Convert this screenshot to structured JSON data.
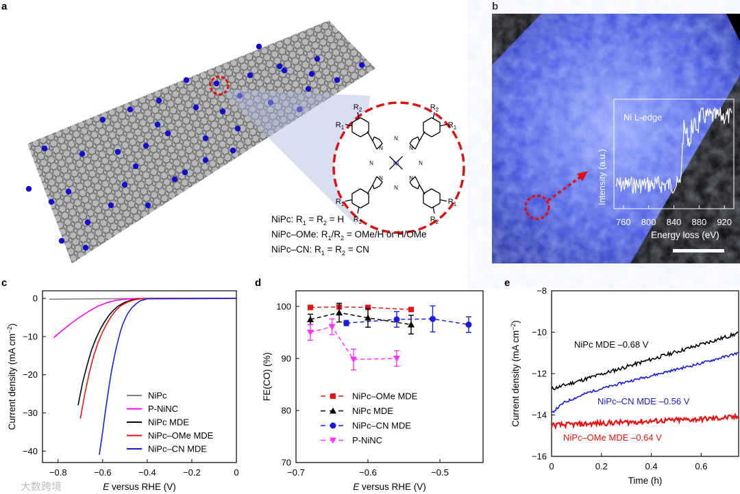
{
  "panels": {
    "a": {
      "label": "a",
      "legend_lines": [
        [
          "NiPc: R",
          "1",
          " = R",
          "2",
          " = H"
        ],
        [
          "NiPc–OMe: R",
          "1",
          "/R",
          "2",
          " = OMe/H or H/OMe"
        ],
        [
          "NiPc–CN: R",
          "1",
          " = R",
          "2",
          " = CN"
        ]
      ],
      "molecule": {
        "metal": "Ni",
        "R1": "R",
        "R2": "R",
        "sub1": "1",
        "sub2": "2",
        "N": "N"
      }
    },
    "b": {
      "label": "b",
      "inset_title": "Ni L-edge",
      "inset_ylabel": "Intensity (a.u.)",
      "inset_xlabel": "Energy loss (eV)",
      "inset_xticks": [
        "760",
        "800",
        "840",
        "880",
        "920"
      ]
    },
    "c": {
      "label": "c"
    },
    "d": {
      "label": "d"
    },
    "e": {
      "label": "e"
    }
  },
  "watermark": "大数跨境",
  "chart_data": [
    {
      "id": "c",
      "type": "line",
      "xlabel_italic": "E",
      "xlabel": " versus RHE (V)",
      "ylabel": "Current density (mA cm",
      "ylabel_sup": "−2",
      "ylabel_end": ")",
      "xlim": [
        -0.87,
        0
      ],
      "ylim": [
        -43,
        2
      ],
      "xticks": [
        -0.8,
        -0.6,
        -0.4,
        -0.2,
        0
      ],
      "xtick_labels": [
        "−0.8",
        "−0.6",
        "−0.4",
        "−0.2",
        "0"
      ],
      "yticks": [
        0,
        -10,
        -20,
        -30,
        -40
      ],
      "ytick_labels": [
        "0",
        "−10",
        "−20",
        "−30",
        "−40"
      ],
      "series": [
        {
          "name": "NiPc",
          "color": "#808080",
          "x": [
            -0.84,
            -0.6,
            -0.3,
            0
          ],
          "y": [
            -0.2,
            -0.1,
            0,
            0
          ]
        },
        {
          "name": "P-NiNC",
          "color": "#ff00ff",
          "x": [
            -0.82,
            -0.78,
            -0.74,
            -0.7,
            -0.66,
            -0.62,
            -0.58,
            -0.54,
            -0.5,
            -0.45,
            -0.4,
            0
          ],
          "y": [
            -10.3,
            -8.3,
            -6.5,
            -4.8,
            -3.3,
            -2.0,
            -1.1,
            -0.5,
            -0.2,
            -0.05,
            0,
            0
          ]
        },
        {
          "name": "NiPc MDE",
          "color": "#000000",
          "x": [
            -0.71,
            -0.69,
            -0.67,
            -0.65,
            -0.63,
            -0.61,
            -0.59,
            -0.57,
            -0.55,
            -0.53,
            -0.5,
            -0.47,
            -0.44,
            -0.4,
            0
          ],
          "y": [
            -28,
            -22,
            -17.5,
            -13.5,
            -10.5,
            -8,
            -6,
            -4.3,
            -3,
            -2,
            -1,
            -0.4,
            -0.1,
            0,
            0
          ]
        },
        {
          "name": "NiPc–OMe MDE",
          "color": "#ee1111",
          "x": [
            -0.7,
            -0.68,
            -0.66,
            -0.64,
            -0.62,
            -0.6,
            -0.58,
            -0.56,
            -0.54,
            -0.52,
            -0.49,
            -0.46,
            -0.43,
            -0.4,
            0
          ],
          "y": [
            -31.5,
            -25,
            -19.5,
            -15,
            -11.5,
            -8.8,
            -6.5,
            -4.6,
            -3.1,
            -2,
            -1,
            -0.4,
            -0.1,
            0,
            0
          ]
        },
        {
          "name": "NiPc–CN MDE",
          "color": "#1a1adc",
          "x": [
            -0.615,
            -0.6,
            -0.59,
            -0.58,
            -0.57,
            -0.56,
            -0.55,
            -0.54,
            -0.53,
            -0.52,
            -0.51,
            -0.49,
            -0.47,
            -0.45,
            -0.43,
            -0.4,
            0
          ],
          "y": [
            -41,
            -35,
            -30.5,
            -26.5,
            -22.5,
            -19,
            -16,
            -13.2,
            -10.8,
            -8.6,
            -6.8,
            -4.2,
            -2.5,
            -1.4,
            -0.6,
            -0.1,
            0
          ]
        }
      ],
      "legend_position": "bottom-right"
    },
    {
      "id": "d",
      "type": "scatter",
      "xlabel_italic": "E",
      "xlabel": " versus RHE (V)",
      "ylabel": "FE(CO) (%)",
      "xlim": [
        -0.7,
        -0.44
      ],
      "ylim": [
        70,
        103
      ],
      "xticks": [
        -0.7,
        -0.6,
        -0.5
      ],
      "xtick_labels": [
        "−0.7",
        "−0.6",
        "−0.5"
      ],
      "yticks": [
        70,
        80,
        90,
        100
      ],
      "ytick_labels": [
        "70",
        "80",
        "90",
        "100"
      ],
      "series": [
        {
          "name": "NiPc–OMe MDE",
          "color": "#ee1111",
          "marker": "square",
          "x": [
            -0.68,
            -0.64,
            -0.6,
            -0.54
          ],
          "y": [
            99.8,
            99.9,
            99.8,
            99.4
          ],
          "err": [
            0.2,
            0.3,
            0.2,
            0.3
          ]
        },
        {
          "name": "NiPc MDE",
          "color": "#000000",
          "marker": "triangle-up",
          "x": [
            -0.68,
            -0.64,
            -0.6,
            -0.54
          ],
          "y": [
            97.5,
            98.8,
            97.8,
            96.5
          ],
          "err": [
            1.0,
            1.8,
            1.8,
            1.8
          ]
        },
        {
          "name": "NiPc–CN MDE",
          "color": "#1a1adc",
          "marker": "circle",
          "x": [
            -0.63,
            -0.56,
            -0.51,
            -0.46
          ],
          "y": [
            96.8,
            97.5,
            97.6,
            96.5
          ],
          "err": [
            0.5,
            1.5,
            2.5,
            1.5
          ]
        },
        {
          "name": "P-NiNC",
          "color": "#ff33ff",
          "marker": "triangle-down",
          "x": [
            -0.68,
            -0.65,
            -0.62,
            -0.56
          ],
          "y": [
            95.0,
            96.1,
            89.8,
            90.0
          ],
          "err": [
            1.5,
            1.5,
            2.0,
            1.5
          ]
        }
      ],
      "legend_position": "bottom-left"
    },
    {
      "id": "e",
      "type": "line",
      "xlabel": "Time (h)",
      "ylabel": "Current density (mA cm",
      "ylabel_sup": "−2",
      "ylabel_end": ")",
      "xlim": [
        0,
        0.75
      ],
      "ylim": [
        -16,
        -8
      ],
      "xticks": [
        0,
        0.2,
        0.4,
        0.6
      ],
      "xtick_labels": [
        "0",
        "0.2",
        "0.4",
        "0.6"
      ],
      "yticks": [
        -8,
        -10,
        -12,
        -14,
        -16
      ],
      "ytick_labels": [
        "−8",
        "−10",
        "−12",
        "−14",
        "−16"
      ],
      "series": [
        {
          "name": "NiPc MDE –0.68 V",
          "color": "#000000",
          "x": [
            0,
            0.75
          ],
          "y": [
            -12.75,
            -10.05
          ]
        },
        {
          "name": "NiPc–CN MDE –0.56 V",
          "color": "#1a1adc",
          "x": [
            0,
            0.05,
            0.15,
            0.3,
            0.45,
            0.6,
            0.75
          ],
          "y": [
            -13.9,
            -13.4,
            -12.9,
            -12.4,
            -11.95,
            -11.5,
            -11.0
          ]
        },
        {
          "name": "NiPc–OMe MDE –0.64 V",
          "color": "#ee1111",
          "x": [
            0,
            0.2,
            0.4,
            0.6,
            0.75
          ],
          "y": [
            -14.5,
            -14.4,
            -14.3,
            -14.2,
            -14.1
          ]
        }
      ]
    }
  ],
  "colors": {
    "blue_atom": "#1010cc",
    "red_dashed": "#e01010",
    "tem_blue": "#3344dd"
  }
}
